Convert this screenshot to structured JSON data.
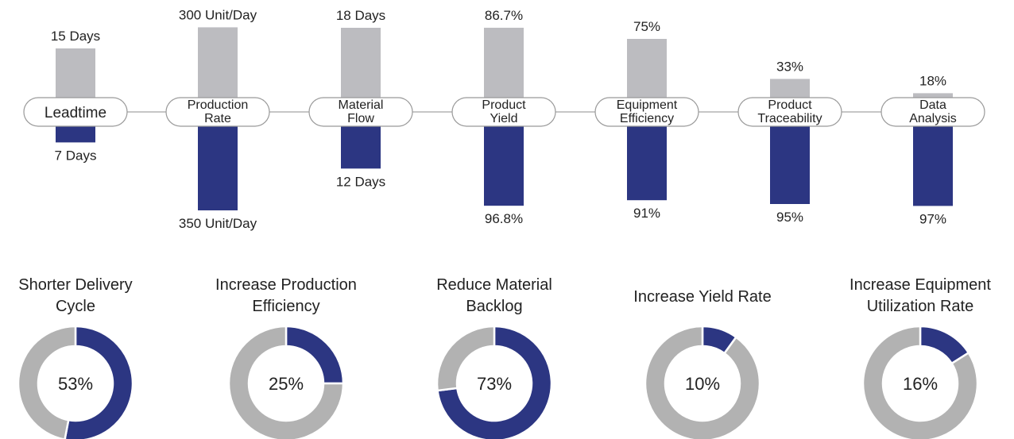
{
  "colors": {
    "before": "#bcbcc0",
    "after": "#2c3682",
    "ring_rest": "#b2b2b2",
    "pill_border": "#999999",
    "connector": "#b3b3b3",
    "text": "#222222"
  },
  "chart_data": [
    {
      "type": "bar",
      "layout": "diverging",
      "categories": [
        [
          "Leadtime"
        ],
        [
          "Production",
          "Rate"
        ],
        [
          "Material",
          "Flow"
        ],
        [
          "Product",
          "Yield"
        ],
        [
          "Equipment",
          "Efficiency"
        ],
        [
          "Product",
          "Traceability"
        ],
        [
          "Data",
          "Analysis"
        ]
      ],
      "series": [
        {
          "color": "#bcbcc0",
          "direction": "up",
          "values": [
            15,
            300,
            18,
            86.7,
            75,
            33,
            18
          ],
          "labels": [
            "15 Days",
            "300 Unit/Day",
            "18 Days",
            "86.7%",
            "75%",
            "33%",
            "18%"
          ]
        },
        {
          "color": "#2c3682",
          "direction": "down",
          "values": [
            7,
            350,
            12,
            96.8,
            91,
            95,
            97
          ],
          "labels": [
            "7 Days",
            "350 Unit/Day",
            "12 Days",
            "96.8%",
            "91%",
            "95%",
            "97%"
          ]
        }
      ],
      "units": [
        "Days",
        "Unit/Day",
        "Days",
        "%",
        "%",
        "%",
        "%"
      ]
    },
    {
      "type": "pie",
      "variant": "donut",
      "charts": [
        {
          "title": [
            "Shorter Delivery",
            "Cycle"
          ],
          "value": 53,
          "label": "53%"
        },
        {
          "title": [
            "Increase Production",
            "Efficiency"
          ],
          "value": 25,
          "label": "25%"
        },
        {
          "title": [
            "Reduce Material",
            "Backlog"
          ],
          "value": 73,
          "label": "73%"
        },
        {
          "title": [
            "Increase Yield Rate"
          ],
          "value": 10,
          "label": "10%"
        },
        {
          "title": [
            "Increase Equipment",
            "Utilization Rate"
          ],
          "value": 16,
          "label": "16%"
        }
      ]
    }
  ]
}
